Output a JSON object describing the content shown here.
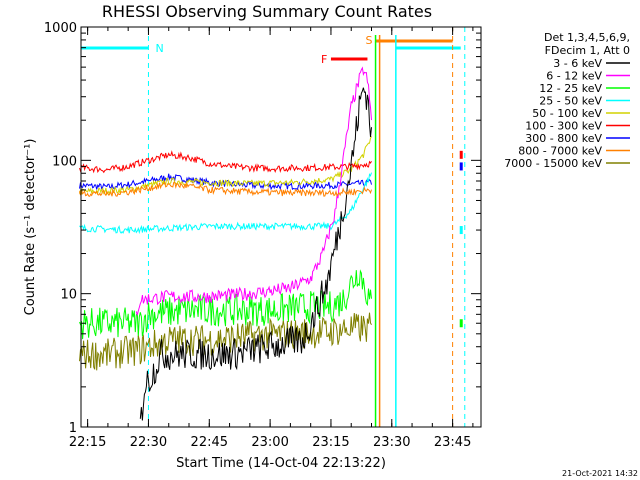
{
  "chart_data": {
    "type": "line",
    "title": "RHESSI Observing Summary Count Rates",
    "xlabel": "Start Time (14-Oct-04 22:13:22)",
    "ylabel": "Count Rate (s⁻¹ detector⁻¹)",
    "y_scale": "log",
    "ylim": [
      1,
      1000
    ],
    "xlim": [
      "22:13:22",
      "23:52:00"
    ],
    "x_ticks": [
      "22:15",
      "22:30",
      "22:45",
      "23:00",
      "23:15",
      "23:30",
      "23:45"
    ],
    "y_ticks": [
      "1",
      "10",
      "100",
      "1000"
    ],
    "grid": false,
    "legend_position": "right",
    "legend_header": [
      "Det 1,3,4,5,6,9,",
      "FDecim 1, Att 0"
    ],
    "footer_date": "21-Oct-2021 14:32",
    "series": [
      {
        "name": "3 - 6 keV",
        "color": "#000000",
        "points": [
          [
            "22:28",
            1
          ],
          [
            "22:29",
            2
          ],
          [
            "22:31",
            2.5
          ],
          [
            "22:33",
            3.5
          ],
          [
            "22:40",
            3.5
          ],
          [
            "22:50",
            3.5
          ],
          [
            "23:00",
            4
          ],
          [
            "23:08",
            4.5
          ],
          [
            "23:11",
            7
          ],
          [
            "23:14",
            12
          ],
          [
            "23:17",
            30
          ],
          [
            "23:20",
            90
          ],
          [
            "23:22",
            250
          ],
          [
            "23:23",
            350
          ],
          [
            "23:24",
            300
          ],
          [
            "23:25",
            150
          ]
        ]
      },
      {
        "name": "6 - 12 keV",
        "color": "#ff00ff",
        "points": [
          [
            "22:13",
            null
          ],
          [
            "22:27",
            7
          ],
          [
            "22:28",
            9
          ],
          [
            "22:35",
            9.5
          ],
          [
            "22:45",
            9.5
          ],
          [
            "22:55",
            10
          ],
          [
            "23:05",
            11
          ],
          [
            "23:10",
            13
          ],
          [
            "23:13",
            20
          ],
          [
            "23:16",
            40
          ],
          [
            "23:18",
            100
          ],
          [
            "23:20",
            250
          ],
          [
            "23:22",
            400
          ],
          [
            "23:23",
            480
          ],
          [
            "23:24",
            400
          ],
          [
            "23:25",
            200
          ]
        ]
      },
      {
        "name": "12 - 25 keV",
        "color": "#00ff00",
        "points": [
          [
            "22:13",
            6
          ],
          [
            "22:20",
            6
          ],
          [
            "22:28",
            6
          ],
          [
            "22:30",
            7
          ],
          [
            "22:40",
            7.5
          ],
          [
            "22:50",
            7.5
          ],
          [
            "23:00",
            7.5
          ],
          [
            "23:10",
            8
          ],
          [
            "23:15",
            8
          ],
          [
            "23:18",
            9
          ],
          [
            "23:20",
            12
          ],
          [
            "23:22",
            15
          ],
          [
            "23:24",
            10
          ],
          [
            "23:25",
            8
          ]
        ]
      },
      {
        "name": "25 - 50 keV",
        "color": "#00ffff",
        "points": [
          [
            "22:13",
            31
          ],
          [
            "22:25",
            30
          ],
          [
            "22:35",
            31
          ],
          [
            "22:45",
            32
          ],
          [
            "22:55",
            32
          ],
          [
            "23:05",
            32
          ],
          [
            "23:15",
            32
          ],
          [
            "23:17",
            35
          ],
          [
            "23:20",
            42
          ],
          [
            "23:22",
            55
          ],
          [
            "23:24",
            70
          ],
          [
            "23:25",
            80
          ]
        ]
      },
      {
        "name": "50 - 100 keV",
        "color": "#d2d200",
        "points": [
          [
            "22:13",
            58
          ],
          [
            "22:25",
            60
          ],
          [
            "22:35",
            70
          ],
          [
            "22:45",
            68
          ],
          [
            "22:55",
            67
          ],
          [
            "23:05",
            68
          ],
          [
            "23:15",
            72
          ],
          [
            "23:20",
            85
          ],
          [
            "23:23",
            110
          ],
          [
            "23:25",
            150
          ]
        ]
      },
      {
        "name": "100 - 300 keV",
        "color": "#ff0000",
        "points": [
          [
            "22:13",
            88
          ],
          [
            "22:20",
            85
          ],
          [
            "22:25",
            90
          ],
          [
            "22:30",
            100
          ],
          [
            "22:35",
            110
          ],
          [
            "22:40",
            105
          ],
          [
            "22:45",
            95
          ],
          [
            "22:50",
            90
          ],
          [
            "22:55",
            88
          ],
          [
            "23:00",
            87
          ],
          [
            "23:10",
            88
          ],
          [
            "23:20",
            90
          ],
          [
            "23:25",
            95
          ]
        ]
      },
      {
        "name": "300 - 800 keV",
        "color": "#0000ff",
        "points": [
          [
            "22:13",
            65
          ],
          [
            "22:20",
            63
          ],
          [
            "22:25",
            66
          ],
          [
            "22:30",
            70
          ],
          [
            "22:35",
            75
          ],
          [
            "22:40",
            72
          ],
          [
            "22:45",
            68
          ],
          [
            "22:55",
            65
          ],
          [
            "23:05",
            64
          ],
          [
            "23:15",
            65
          ],
          [
            "23:20",
            66
          ],
          [
            "23:25",
            68
          ]
        ]
      },
      {
        "name": "800 - 7000 keV",
        "color": "#ff8000",
        "points": [
          [
            "22:13",
            57
          ],
          [
            "22:20",
            56
          ],
          [
            "22:25",
            58
          ],
          [
            "22:30",
            62
          ],
          [
            "22:35",
            66
          ],
          [
            "22:40",
            64
          ],
          [
            "22:45",
            60
          ],
          [
            "22:55",
            58
          ],
          [
            "23:05",
            57
          ],
          [
            "23:15",
            57
          ],
          [
            "23:20",
            58
          ],
          [
            "23:25",
            60
          ]
        ]
      },
      {
        "name": "7000 - 15000 keV",
        "color": "#808000",
        "points": [
          [
            "22:13",
            3.5
          ],
          [
            "22:20",
            3.5
          ],
          [
            "22:28",
            3.8
          ],
          [
            "22:35",
            4.5
          ],
          [
            "22:45",
            4.5
          ],
          [
            "22:55",
            4.8
          ],
          [
            "23:05",
            5
          ],
          [
            "23:15",
            5.2
          ],
          [
            "23:20",
            5.5
          ],
          [
            "23:25",
            5.5
          ]
        ]
      }
    ],
    "annotations": [
      {
        "label": "N",
        "color": "#00ffff",
        "bars": [
          [
            "22:13",
            "22:30"
          ],
          [
            "23:31",
            "23:47"
          ]
        ],
        "markers": [
          "22:30",
          "23:48"
        ]
      },
      {
        "label": "F",
        "color": "#ff0000",
        "bars": [
          [
            "23:15",
            "23:24"
          ]
        ]
      },
      {
        "label": "S",
        "color": "#ff8000",
        "bars": [
          [
            "23:26",
            "23:45"
          ]
        ],
        "markers": [
          "23:45"
        ]
      }
    ],
    "end_marks": [
      {
        "color": "#ff8000",
        "time": "23:27"
      },
      {
        "color": "#00ff00",
        "time": "23:26"
      },
      {
        "color": "#00ffff",
        "time": "23:31"
      }
    ],
    "tail_points": [
      {
        "time": "23:47",
        "values": [
          110,
          90,
          30,
          6
        ]
      }
    ]
  }
}
